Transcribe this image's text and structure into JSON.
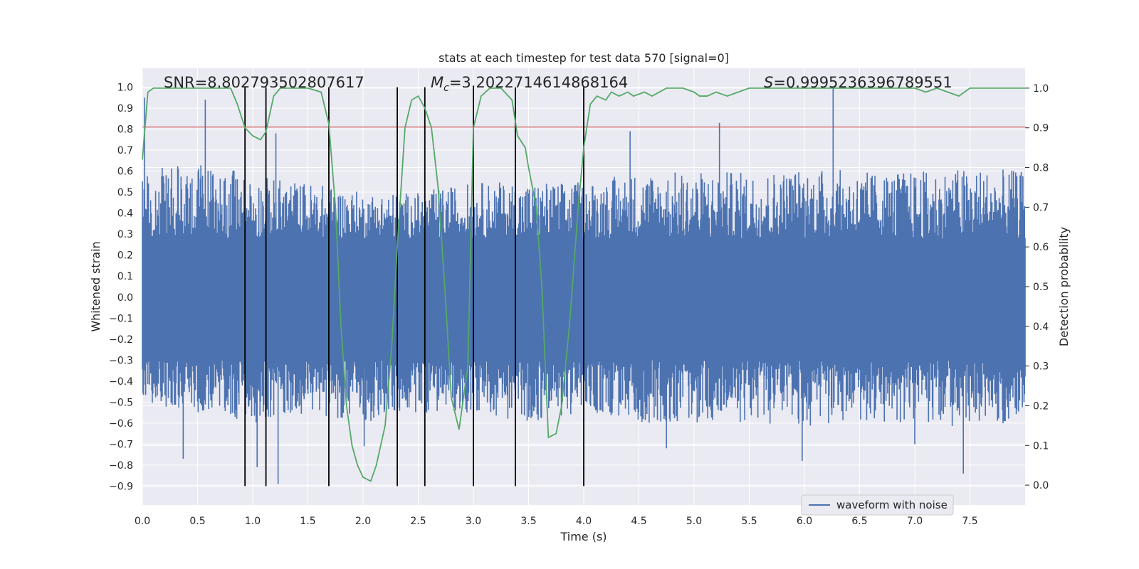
{
  "chart_data": {
    "type": "line",
    "title": "stats at each timestep for test data 570 [signal=0]",
    "xlabel": "Time (s)",
    "ylabel_left": "Whitened strain",
    "ylabel_right": "Detection probability",
    "xlim": [
      0.0,
      8.0
    ],
    "ylim_left": [
      -0.99,
      1.09
    ],
    "ylim_right": [
      -0.05,
      1.05
    ],
    "x_ticks": [
      0.0,
      0.5,
      1.0,
      1.5,
      2.0,
      2.5,
      3.0,
      3.5,
      4.0,
      4.5,
      5.0,
      5.5,
      6.0,
      6.5,
      7.0,
      7.5
    ],
    "x_tick_labels": [
      "0.0",
      "0.5",
      "1.0",
      "1.5",
      "2.0",
      "2.5",
      "3.0",
      "3.5",
      "4.0",
      "4.5",
      "5.0",
      "5.5",
      "6.0",
      "6.5",
      "7.0",
      "7.5"
    ],
    "y_ticks_left": [
      -0.9,
      -0.8,
      -0.7,
      -0.6,
      -0.5,
      -0.4,
      -0.3,
      -0.2,
      -0.1,
      0.0,
      0.1,
      0.2,
      0.3,
      0.4,
      0.5,
      0.6,
      0.7,
      0.8,
      0.9,
      1.0
    ],
    "y_tick_labels_left": [
      "−0.9",
      "−0.8",
      "−0.7",
      "−0.6",
      "−0.5",
      "−0.4",
      "−0.3",
      "−0.2",
      "−0.1",
      "0.0",
      "0.1",
      "0.2",
      "0.3",
      "0.4",
      "0.5",
      "0.6",
      "0.7",
      "0.8",
      "0.9",
      "1.0"
    ],
    "y_ticks_right": [
      0.0,
      0.1,
      0.2,
      0.3,
      0.4,
      0.5,
      0.6,
      0.7,
      0.8,
      0.9,
      1.0
    ],
    "y_tick_labels_right": [
      "0.0",
      "0.1",
      "0.2",
      "0.3",
      "0.4",
      "0.5",
      "0.6",
      "0.7",
      "0.8",
      "0.9",
      "1.0"
    ],
    "grid": true,
    "legend": {
      "position": "lower-right",
      "entries": [
        "waveform with noise"
      ]
    },
    "annotations": {
      "snr": "SNR=8.802793502807617",
      "mc_symbol": "M",
      "mc_sub": "c",
      "mc_value": "=3.2022714614868164",
      "s_symbol": "S",
      "s_value": "=0.9995236396789551"
    },
    "threshold_y": 0.81,
    "vlines_x": [
      0.93,
      1.12,
      1.69,
      2.31,
      2.56,
      3.0,
      3.38,
      4.0
    ],
    "vline_y_range": [
      -0.9,
      1.0
    ],
    "series": [
      {
        "name": "waveform with noise",
        "kind": "strain",
        "color": "#4c72b0",
        "profile_x": [
          0,
          0.5,
          1.0,
          1.5,
          2.0,
          2.5,
          3.0,
          3.5,
          4.0,
          4.5,
          5.0,
          5.5,
          6.0,
          6.5,
          7.0,
          7.5,
          8.0
        ],
        "profile_max": [
          0.6,
          0.65,
          0.58,
          0.55,
          0.5,
          0.5,
          0.55,
          0.55,
          0.55,
          0.6,
          0.6,
          0.6,
          0.62,
          0.6,
          0.6,
          0.62,
          0.6
        ],
        "profile_min": [
          -0.5,
          -0.55,
          -0.6,
          -0.55,
          -0.6,
          -0.55,
          -0.55,
          -0.6,
          -0.55,
          -0.6,
          -0.6,
          -0.6,
          -0.62,
          -0.6,
          -0.6,
          -0.62,
          -0.6
        ],
        "spikes": [
          {
            "x": 0.02,
            "y": 0.95
          },
          {
            "x": 0.57,
            "y": 0.94
          },
          {
            "x": 1.12,
            "y": 0.8
          },
          {
            "x": 1.21,
            "y": 0.78
          },
          {
            "x": 4.42,
            "y": 0.79
          },
          {
            "x": 5.23,
            "y": 0.83
          },
          {
            "x": 6.26,
            "y": 1.0
          },
          {
            "x": 0.37,
            "y": -0.77
          },
          {
            "x": 1.04,
            "y": -0.81
          },
          {
            "x": 1.23,
            "y": -0.89
          },
          {
            "x": 2.01,
            "y": -0.71
          },
          {
            "x": 5.98,
            "y": -0.78
          },
          {
            "x": 7.44,
            "y": -0.84
          },
          {
            "x": 7.0,
            "y": -0.7
          },
          {
            "x": 4.75,
            "y": -0.72
          }
        ]
      },
      {
        "name": "",
        "kind": "probability",
        "color": "#55a868",
        "x": [
          0.0,
          0.05,
          0.1,
          0.15,
          0.3,
          0.5,
          0.8,
          0.86,
          0.93,
          1.0,
          1.07,
          1.12,
          1.19,
          1.25,
          1.35,
          1.5,
          1.62,
          1.69,
          1.75,
          1.8,
          1.85,
          1.9,
          1.95,
          2.0,
          2.07,
          2.12,
          2.2,
          2.26,
          2.31,
          2.38,
          2.44,
          2.5,
          2.56,
          2.62,
          2.68,
          2.74,
          2.8,
          2.87,
          2.95,
          3.0,
          3.07,
          3.15,
          3.25,
          3.35,
          3.4,
          3.47,
          3.5,
          3.57,
          3.62,
          3.68,
          3.75,
          3.8,
          3.87,
          3.95,
          4.0,
          4.06,
          4.12,
          4.2,
          4.25,
          4.32,
          4.4,
          4.45,
          4.55,
          4.62,
          4.75,
          4.9,
          5.0,
          5.05,
          5.12,
          5.2,
          5.3,
          5.4,
          5.5,
          5.7,
          6.0,
          6.2,
          6.4,
          6.6,
          6.8,
          7.0,
          7.1,
          7.2,
          7.3,
          7.4,
          7.5,
          7.6,
          8.0
        ],
        "y": [
          0.82,
          0.99,
          1.0,
          1.0,
          1.0,
          1.0,
          1.0,
          0.96,
          0.9,
          0.88,
          0.87,
          0.89,
          0.98,
          1.0,
          1.0,
          1.0,
          0.99,
          0.91,
          0.7,
          0.4,
          0.2,
          0.1,
          0.05,
          0.02,
          0.01,
          0.05,
          0.15,
          0.35,
          0.6,
          0.9,
          0.97,
          0.98,
          0.95,
          0.9,
          0.75,
          0.5,
          0.22,
          0.14,
          0.3,
          0.9,
          0.98,
          1.0,
          1.0,
          0.97,
          0.88,
          0.85,
          0.8,
          0.7,
          0.5,
          0.12,
          0.13,
          0.2,
          0.4,
          0.7,
          0.85,
          0.96,
          0.98,
          0.97,
          0.99,
          0.98,
          0.99,
          0.98,
          0.99,
          0.98,
          1.0,
          1.0,
          0.99,
          0.98,
          0.98,
          0.99,
          0.98,
          0.99,
          1.0,
          1.0,
          1.0,
          1.0,
          1.0,
          1.0,
          1.0,
          1.0,
          0.99,
          1.0,
          0.99,
          0.98,
          1.0,
          1.0,
          1.0
        ]
      }
    ]
  }
}
